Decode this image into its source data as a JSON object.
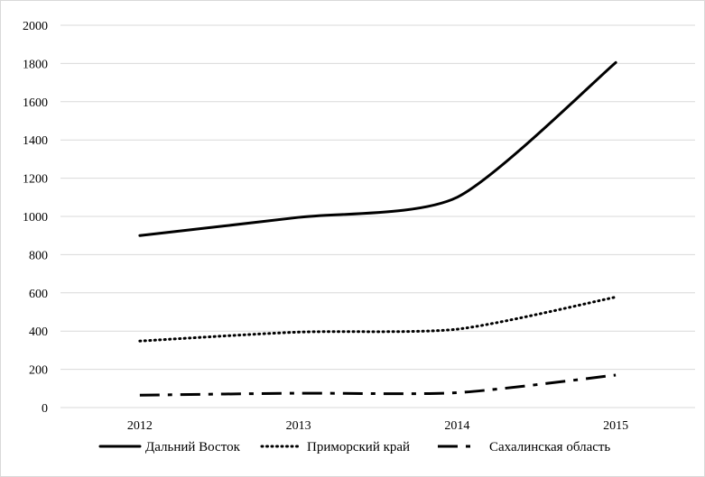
{
  "chart_data": {
    "type": "line",
    "title": "",
    "xlabel": "",
    "ylabel": "",
    "categories": [
      "2012",
      "2013",
      "2014",
      "2015"
    ],
    "ylim": [
      0,
      2000
    ],
    "yticks": [
      0,
      200,
      400,
      600,
      800,
      1000,
      1200,
      1400,
      1600,
      1800,
      2000
    ],
    "grid": "horizontal",
    "legend_position": "bottom",
    "series": [
      {
        "name": "Дальний Восток",
        "values": [
          900,
          995,
          1100,
          1805
        ],
        "line_style": "solid",
        "color": "#000000"
      },
      {
        "name": "Приморский край",
        "values": [
          348,
          395,
          410,
          578
        ],
        "line_style": "dotted",
        "color": "#000000"
      },
      {
        "name": "Сахалинская область",
        "values": [
          65,
          75,
          78,
          170
        ],
        "line_style": "dash-dot",
        "color": "#000000"
      }
    ]
  }
}
